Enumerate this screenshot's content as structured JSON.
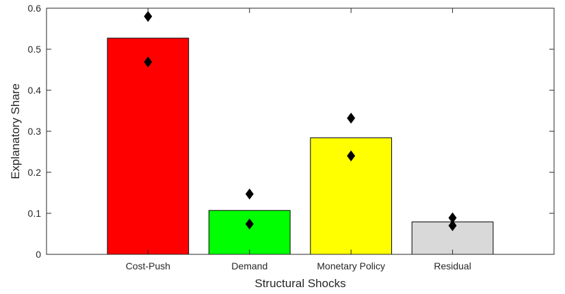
{
  "chart_data": {
    "type": "bar",
    "title": "",
    "xlabel": "Structural Shocks",
    "ylabel": "Explanatory Share",
    "categories": [
      "Cost-Push",
      "Demand",
      "Monetary Policy",
      "Residual"
    ],
    "values": [
      0.527,
      0.107,
      0.284,
      0.079
    ],
    "bar_colors": [
      "#ff0000",
      "#00ff00",
      "#ffff00",
      "#d9d9d9"
    ],
    "markers": {
      "shape": "diamond",
      "color": "#000000",
      "upper": [
        0.58,
        0.147,
        0.332,
        0.089
      ],
      "lower": [
        0.469,
        0.074,
        0.24,
        0.07
      ]
    },
    "ylim": [
      0,
      0.6
    ],
    "yticks": [
      "0",
      "0.1",
      "0.2",
      "0.3",
      "0.4",
      "0.5",
      "0.6"
    ],
    "ytick_values": [
      0,
      0.1,
      0.2,
      0.3,
      0.4,
      0.5,
      0.6
    ],
    "grid": false,
    "legend": "none"
  }
}
